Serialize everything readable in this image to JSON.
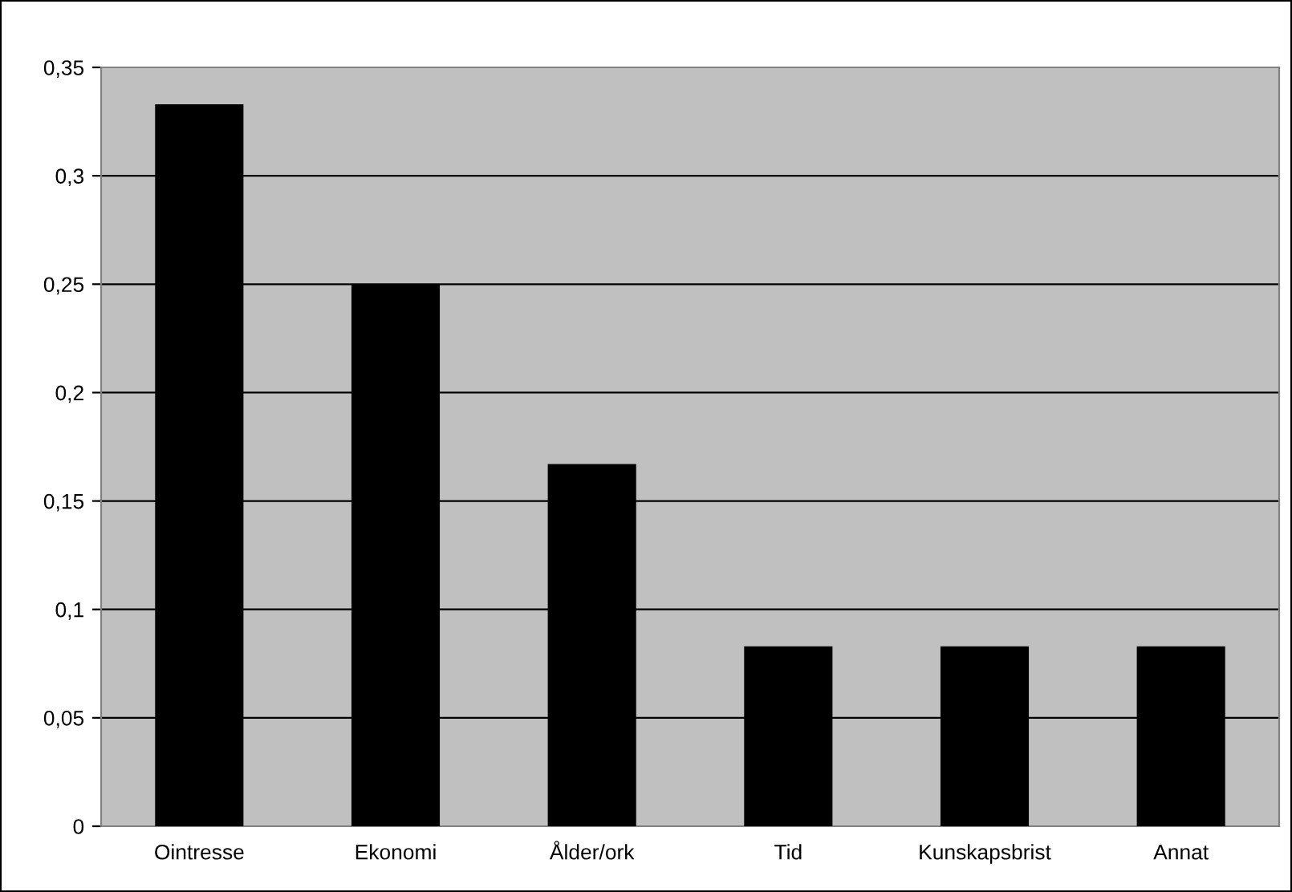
{
  "chart_data": {
    "type": "bar",
    "categories": [
      "Ointresse",
      "Ekonomi",
      "Ålder/ork",
      "Tid",
      "Kunskapsbrist",
      "Annat"
    ],
    "values": [
      0.333,
      0.25,
      0.167,
      0.083,
      0.083,
      0.083
    ],
    "color": "#000000",
    "ylim": [
      0,
      0.35
    ],
    "yticks": [
      0,
      {
        "value": 0.05,
        "label": "0,05"
      },
      {
        "value": 0.1,
        "label": "0,1"
      },
      {
        "value": 0.15,
        "label": "0,15"
      },
      {
        "value": 0.2,
        "label": "0,2"
      },
      {
        "value": 0.25,
        "label": "0,25"
      },
      {
        "value": 0.3,
        "label": "0,3"
      },
      {
        "value": 0.35,
        "label": "0,35"
      }
    ],
    "grid": "y",
    "legend": false
  }
}
